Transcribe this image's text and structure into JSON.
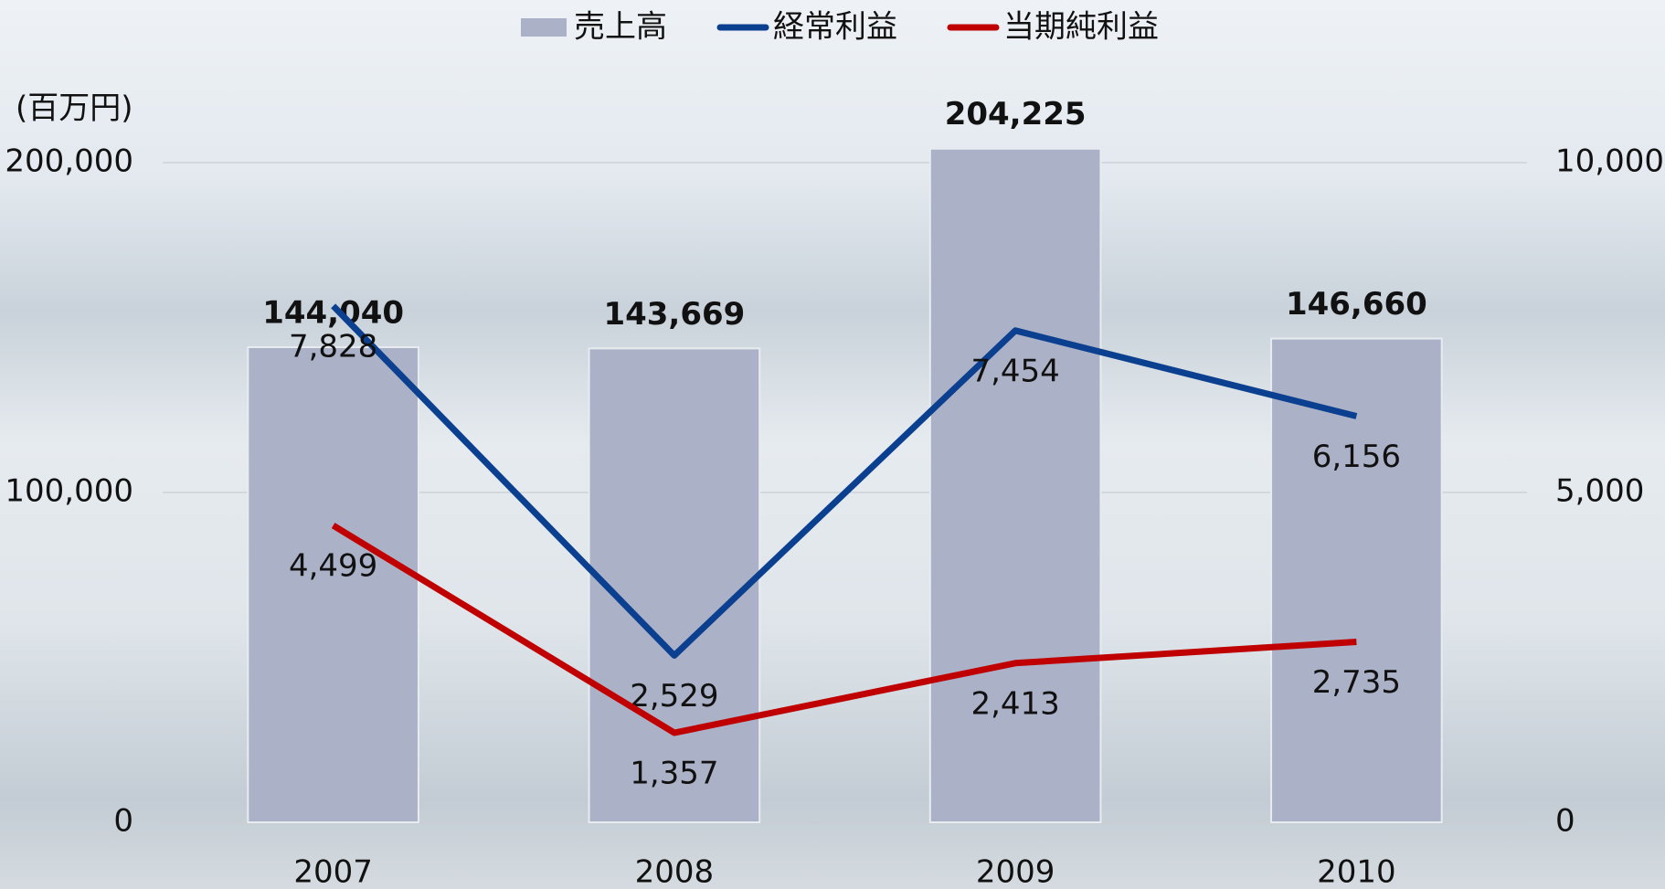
{
  "chart_data": {
    "type": "bar",
    "y_label": "(百万円)",
    "categories": [
      "2007",
      "2008",
      "2009",
      "2010"
    ],
    "series": [
      {
        "name": "売上高",
        "type": "bar",
        "color": "#abb1c6",
        "values": [
          144040,
          143669,
          204225,
          146660
        ],
        "value_labels": [
          "144,040",
          "143,669",
          "204,225",
          "146,660"
        ]
      },
      {
        "name": "経常利益",
        "type": "line",
        "axis": "y2",
        "color": "#0b3f8f",
        "values": [
          7828,
          2529,
          7454,
          6156
        ],
        "value_labels": [
          "7,828",
          "2,529",
          "7,454",
          "6,156"
        ]
      },
      {
        "name": "当期純利益",
        "type": "line",
        "axis": "y2",
        "color": "#c00000",
        "values": [
          4499,
          1357,
          2413,
          2735
        ],
        "value_labels": [
          "4,499",
          "1,357",
          "2,413",
          "2,735"
        ]
      }
    ],
    "ylim": [
      0,
      200000
    ],
    "yticks": [
      0,
      {
        "value": 100000,
        "label": "100,000"
      },
      {
        "value": 200000,
        "label": "200,000"
      }
    ],
    "y2lim": [
      0,
      10000
    ],
    "y2ticks": [
      0,
      {
        "value": 5000,
        "label": "5,000"
      },
      {
        "value": 10000,
        "label": "10,000"
      }
    ],
    "grid": true
  }
}
